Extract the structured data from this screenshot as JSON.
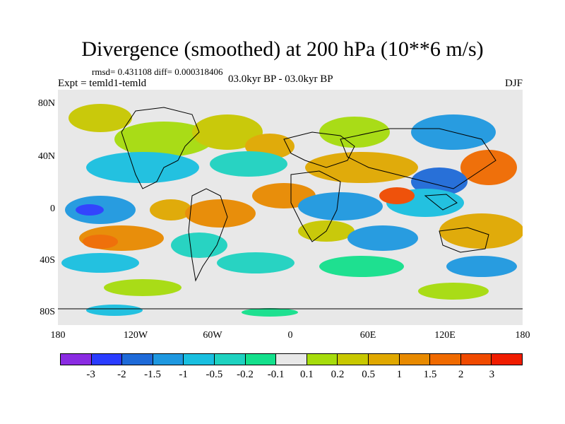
{
  "title": "Divergence (smoothed) at 200 hPa (10**6 m/s)",
  "stats": "rmsd= 0.431108 diff= 0.000318406",
  "experiment": "Expt = temld1-temld",
  "period": "03.0kyr BP - 03.0kyr BP",
  "season": "DJF",
  "lat_labels": [
    "80N",
    "40N",
    "0",
    "40S",
    "80S"
  ],
  "lon_labels": [
    "180",
    "120W",
    "60W",
    "0",
    "60E",
    "120E",
    "180"
  ],
  "colorbar": {
    "labels": [
      "-3",
      "-2",
      "-1.5",
      "-1",
      "-0.5",
      "-0.2",
      "-0.1",
      "0.1",
      "0.2",
      "0.5",
      "1",
      "1.5",
      "2",
      "3"
    ],
    "colors": [
      "#8a2be2",
      "#2a3cff",
      "#1e6ad8",
      "#1e98e0",
      "#19bfe0",
      "#1ed2c0",
      "#14e08c",
      "#e8e8e8",
      "#a6dc0c",
      "#c8c800",
      "#e0a800",
      "#e88a00",
      "#f06a00",
      "#f04a00",
      "#f01c00"
    ]
  }
}
